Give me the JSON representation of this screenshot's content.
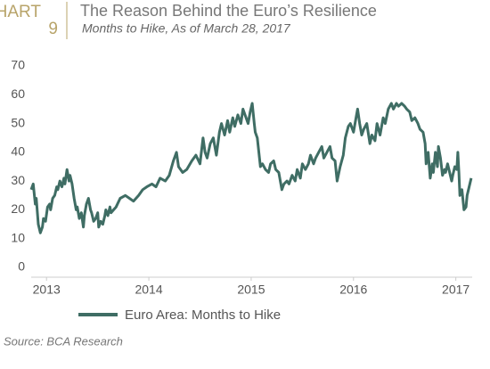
{
  "chart_data": {
    "type": "line",
    "chart_label": "CHART",
    "chart_number": "9",
    "title": "The Reason Behind the Euro’s Resilience",
    "subtitle": "Months to Hike, As of March 28, 2017",
    "source": "Source: BCA Research",
    "xlim": [
      2012.85,
      2017.16
    ],
    "xticks": [
      2013,
      2014,
      2015,
      2016,
      2017
    ],
    "ylim": [
      0,
      70
    ],
    "yticks": [
      0,
      10,
      20,
      30,
      40,
      50,
      60,
      70
    ],
    "grid": false,
    "x": [
      2012.85,
      2012.87,
      2012.89,
      2012.9,
      2012.92,
      2012.94,
      2012.96,
      2012.97,
      2012.99,
      2013.01,
      2013.03,
      2013.04,
      2013.06,
      2013.08,
      2013.1,
      2013.11,
      2013.13,
      2013.15,
      2013.17,
      2013.18,
      2013.2,
      2013.22,
      2013.23,
      2013.25,
      2013.27,
      2013.29,
      2013.3,
      2013.32,
      2013.34,
      2013.36,
      2013.37,
      2013.39,
      2013.41,
      2013.43,
      2013.44,
      2013.46,
      2013.48,
      2013.5,
      2013.51,
      2013.53,
      2013.55,
      2013.57,
      2013.58,
      2013.6,
      2013.62,
      2013.63,
      2013.68,
      2013.72,
      2013.77,
      2013.81,
      2013.85,
      2013.9,
      2013.94,
      2013.98,
      2014.03,
      2014.07,
      2014.11,
      2014.16,
      2014.2,
      2014.24,
      2014.27,
      2014.29,
      2014.33,
      2014.37,
      2014.42,
      2014.46,
      2014.5,
      2014.53,
      2014.55,
      2014.57,
      2014.6,
      2014.63,
      2014.66,
      2014.69,
      2014.71,
      2014.74,
      2014.77,
      2014.79,
      2014.82,
      2014.84,
      2014.87,
      2014.9,
      2014.92,
      2014.95,
      2014.97,
      2014.99,
      2015.01,
      2015.03,
      2015.04,
      2015.06,
      2015.09,
      2015.11,
      2015.14,
      2015.17,
      2015.19,
      2015.22,
      2015.24,
      2015.27,
      2015.3,
      2015.32,
      2015.35,
      2015.37,
      2015.4,
      2015.43,
      2015.45,
      2015.48,
      2015.5,
      2015.53,
      2015.56,
      2015.58,
      2015.61,
      2015.63,
      2015.66,
      2015.69,
      2015.71,
      2015.74,
      2015.77,
      2015.79,
      2015.82,
      2015.84,
      2015.87,
      2015.9,
      2015.92,
      2015.95,
      2015.97,
      2016.0,
      2016.03,
      2016.04,
      2016.06,
      2016.08,
      2016.1,
      2016.13,
      2016.16,
      2016.18,
      2016.21,
      2016.23,
      2016.26,
      2016.29,
      2016.31,
      2016.34,
      2016.37,
      2016.39,
      2016.42,
      2016.44,
      2016.47,
      2016.5,
      2016.52,
      2016.55,
      2016.57,
      2016.6,
      2016.63,
      2016.65,
      2016.68,
      2016.7,
      2016.71,
      2016.73,
      2016.75,
      2016.77,
      2016.78,
      2016.8,
      2016.82,
      2016.83,
      2016.85,
      2016.87,
      2016.89,
      2016.9,
      2016.92,
      2016.94,
      2016.96,
      2016.97,
      2016.99,
      2017.01,
      2017.02,
      2017.03,
      2017.04,
      2017.06,
      2017.08,
      2017.1,
      2017.11,
      2017.13,
      2017.15
    ],
    "series": [
      {
        "name": "Euro Area: Months to Hike",
        "color": "#3f6d64",
        "values": [
          27,
          29,
          22,
          24,
          15,
          12,
          14,
          17,
          16,
          21,
          22,
          20,
          24,
          25,
          28,
          27,
          30,
          28,
          31,
          29,
          34,
          30,
          32,
          29,
          24,
          20,
          21,
          17,
          19,
          14,
          18,
          22,
          24,
          20,
          19,
          16,
          17,
          19,
          14,
          16,
          15,
          18,
          20,
          18,
          21,
          19,
          21,
          24,
          25,
          24,
          23,
          25,
          27,
          28,
          29,
          28,
          31,
          30,
          32,
          37,
          40,
          35,
          33,
          34,
          37,
          39,
          36,
          45,
          40,
          38,
          43,
          45,
          39,
          47,
          50,
          46,
          51,
          47,
          52,
          49,
          53,
          50,
          55,
          52,
          50,
          54,
          57,
          50,
          47,
          45,
          35,
          36,
          34,
          33,
          36,
          37,
          34,
          33,
          27,
          29,
          30,
          29,
          32,
          30,
          34,
          31,
          36,
          34,
          36,
          39,
          36,
          38,
          40,
          42,
          38,
          40,
          42,
          38,
          37,
          30,
          35,
          39,
          45,
          49,
          50,
          47,
          53,
          55,
          50,
          46,
          48,
          50,
          43,
          46,
          44,
          50,
          46,
          52,
          50,
          55,
          57,
          55,
          57,
          56,
          57,
          56,
          55,
          54,
          51,
          52,
          50,
          48,
          47,
          43,
          36,
          40,
          31,
          36,
          33,
          40,
          35,
          42,
          38,
          32,
          34,
          33,
          36,
          33,
          30,
          32,
          35,
          34,
          40,
          33,
          25,
          27,
          20,
          21,
          25,
          28,
          31
        ]
      }
    ]
  }
}
